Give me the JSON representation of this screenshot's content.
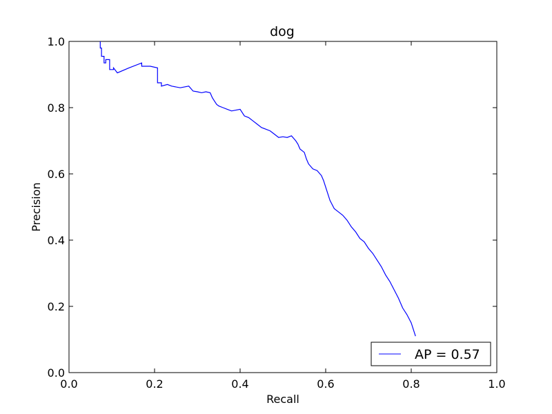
{
  "chart_data": {
    "type": "line",
    "title": "dog",
    "xlabel": "Recall",
    "ylabel": "Precision",
    "xlim": [
      0.0,
      1.0
    ],
    "ylim": [
      0.0,
      1.0
    ],
    "xticks": [
      "0.0",
      "0.2",
      "0.4",
      "0.6",
      "0.8",
      "1.0"
    ],
    "yticks": [
      "0.0",
      "0.2",
      "0.4",
      "0.6",
      "0.8",
      "1.0"
    ],
    "grid": false,
    "legend_position": "lower-right",
    "series": [
      {
        "name": "AP = 0.57",
        "color": "#0000ff",
        "x": [
          0.073,
          0.073,
          0.076,
          0.076,
          0.082,
          0.082,
          0.086,
          0.086,
          0.095,
          0.095,
          0.104,
          0.104,
          0.113,
          0.14,
          0.17,
          0.17,
          0.19,
          0.207,
          0.207,
          0.216,
          0.216,
          0.23,
          0.24,
          0.26,
          0.28,
          0.29,
          0.3,
          0.31,
          0.32,
          0.33,
          0.335,
          0.34,
          0.345,
          0.35,
          0.36,
          0.37,
          0.38,
          0.4,
          0.41,
          0.42,
          0.43,
          0.44,
          0.45,
          0.46,
          0.47,
          0.48,
          0.49,
          0.5,
          0.51,
          0.52,
          0.53,
          0.535,
          0.54,
          0.55,
          0.555,
          0.56,
          0.57,
          0.58,
          0.59,
          0.595,
          0.6,
          0.605,
          0.61,
          0.62,
          0.63,
          0.64,
          0.65,
          0.66,
          0.67,
          0.68,
          0.69,
          0.7,
          0.71,
          0.72,
          0.73,
          0.74,
          0.75,
          0.76,
          0.77,
          0.78,
          0.79,
          0.8,
          0.81
        ],
        "y": [
          1.0,
          0.98,
          0.98,
          0.955,
          0.955,
          0.935,
          0.935,
          0.945,
          0.945,
          0.915,
          0.915,
          0.92,
          0.905,
          0.92,
          0.935,
          0.925,
          0.925,
          0.92,
          0.875,
          0.875,
          0.865,
          0.87,
          0.865,
          0.86,
          0.865,
          0.85,
          0.848,
          0.845,
          0.848,
          0.845,
          0.83,
          0.82,
          0.81,
          0.805,
          0.8,
          0.795,
          0.79,
          0.795,
          0.775,
          0.77,
          0.76,
          0.75,
          0.74,
          0.735,
          0.73,
          0.72,
          0.71,
          0.712,
          0.71,
          0.715,
          0.7,
          0.69,
          0.675,
          0.665,
          0.645,
          0.63,
          0.615,
          0.61,
          0.595,
          0.58,
          0.56,
          0.54,
          0.52,
          0.495,
          0.485,
          0.475,
          0.46,
          0.44,
          0.425,
          0.405,
          0.395,
          0.375,
          0.36,
          0.34,
          0.32,
          0.295,
          0.275,
          0.25,
          0.225,
          0.195,
          0.175,
          0.15,
          0.11
        ]
      }
    ]
  }
}
